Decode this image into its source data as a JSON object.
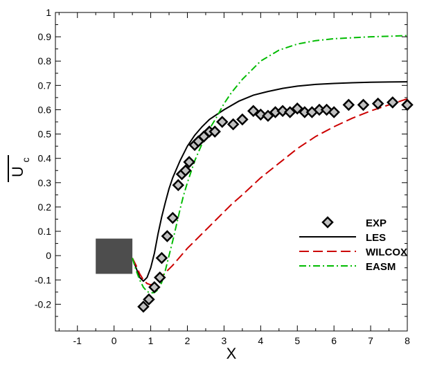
{
  "chart_data": {
    "type": "line",
    "title": "",
    "xlabel": "X",
    "ylabel_main": "U",
    "ylabel_sub": "c",
    "xlim": [
      -1.6,
      8
    ],
    "ylim": [
      -0.31,
      1
    ],
    "xticks": [
      -1,
      0,
      1,
      2,
      3,
      4,
      5,
      6,
      7,
      8
    ],
    "yticks": [
      -0.2,
      -0.1,
      0,
      0.1,
      0.2,
      0.3,
      0.4,
      0.5,
      0.6,
      0.7,
      0.8,
      0.9,
      1
    ],
    "xtick_labels": [
      "-1",
      "0",
      "1",
      "2",
      "3",
      "4",
      "5",
      "6",
      "7",
      "8"
    ],
    "ytick_labels": [
      "-0.2",
      "-0.1",
      "0",
      "0.1",
      "0.2",
      "0.3",
      "0.4",
      "0.5",
      "0.6",
      "0.7",
      "0.8",
      "0.9",
      "1"
    ],
    "grid": false,
    "legend_position": "right",
    "obstacle": {
      "x0": -0.5,
      "x1": 0.5,
      "y0": -0.075,
      "y1": 0.07,
      "color": "#4d4d4d"
    },
    "series": [
      {
        "name": "EXP",
        "kind": "markers",
        "marker": "diamond",
        "color": "#000000",
        "fill": "#c0c0c0",
        "x": [
          0.8,
          0.95,
          1.1,
          1.25,
          1.3,
          1.45,
          1.6,
          1.75,
          1.85,
          1.95,
          2.05,
          2.2,
          2.3,
          2.45,
          2.6,
          2.75,
          2.95,
          3.25,
          3.5,
          3.8,
          4.0,
          4.2,
          4.4,
          4.6,
          4.8,
          5.0,
          5.2,
          5.4,
          5.6,
          5.8,
          6.0,
          6.4,
          6.8,
          7.2,
          7.6,
          8.0
        ],
        "y": [
          -0.21,
          -0.18,
          -0.13,
          -0.09,
          -0.01,
          0.08,
          0.155,
          0.29,
          0.335,
          0.35,
          0.385,
          0.455,
          0.47,
          0.49,
          0.51,
          0.51,
          0.55,
          0.54,
          0.56,
          0.595,
          0.58,
          0.575,
          0.59,
          0.595,
          0.59,
          0.605,
          0.59,
          0.59,
          0.6,
          0.6,
          0.59,
          0.62,
          0.62,
          0.625,
          0.63,
          0.62
        ]
      },
      {
        "name": "LES",
        "kind": "line",
        "dash": "solid",
        "color": "#000000",
        "x": [
          0.5,
          0.6,
          0.7,
          0.8,
          0.9,
          1.0,
          1.1,
          1.2,
          1.3,
          1.4,
          1.5,
          1.6,
          1.8,
          2.0,
          2.2,
          2.4,
          2.6,
          2.8,
          3.0,
          3.4,
          3.8,
          4.2,
          4.6,
          5.0,
          5.5,
          6.0,
          6.5,
          7.0,
          7.5,
          8.0
        ],
        "y": [
          -0.01,
          -0.05,
          -0.09,
          -0.105,
          -0.09,
          -0.05,
          0.01,
          0.09,
          0.16,
          0.22,
          0.275,
          0.32,
          0.39,
          0.45,
          0.495,
          0.53,
          0.56,
          0.58,
          0.6,
          0.635,
          0.66,
          0.675,
          0.688,
          0.697,
          0.704,
          0.708,
          0.711,
          0.713,
          0.714,
          0.715
        ]
      },
      {
        "name": "WILCOX",
        "kind": "line",
        "dash": "long-dash",
        "color": "#cc0000",
        "x": [
          0.5,
          0.6,
          0.7,
          0.8,
          0.9,
          1.0,
          1.1,
          1.2,
          1.3,
          1.4,
          1.6,
          1.8,
          2.0,
          2.2,
          2.4,
          2.6,
          2.8,
          3.0,
          3.2,
          3.5,
          4.0,
          4.5,
          5.0,
          5.5,
          6.0,
          6.5,
          7.0,
          7.5,
          8.0
        ],
        "y": [
          -0.01,
          -0.04,
          -0.075,
          -0.1,
          -0.115,
          -0.12,
          -0.115,
          -0.1,
          -0.085,
          -0.07,
          -0.04,
          -0.005,
          0.03,
          0.06,
          0.09,
          0.12,
          0.15,
          0.18,
          0.21,
          0.25,
          0.32,
          0.38,
          0.44,
          0.49,
          0.53,
          0.565,
          0.595,
          0.62,
          0.645
        ]
      },
      {
        "name": "EASM",
        "kind": "line",
        "dash": "dash-dot",
        "color": "#00bb00",
        "x": [
          0.5,
          0.6,
          0.7,
          0.8,
          0.9,
          1.0,
          1.1,
          1.2,
          1.3,
          1.4,
          1.5,
          1.6,
          1.7,
          1.8,
          1.9,
          2.0,
          2.2,
          2.4,
          2.6,
          2.8,
          3.0,
          3.2,
          3.5,
          4.0,
          4.5,
          5.0,
          5.5,
          6.0,
          6.5,
          7.0,
          7.5,
          8.0
        ],
        "y": [
          -0.01,
          -0.06,
          -0.1,
          -0.13,
          -0.148,
          -0.153,
          -0.152,
          -0.14,
          -0.11,
          -0.06,
          0.0,
          0.06,
          0.125,
          0.19,
          0.25,
          0.3,
          0.39,
          0.46,
          0.52,
          0.57,
          0.625,
          0.67,
          0.725,
          0.8,
          0.845,
          0.87,
          0.884,
          0.892,
          0.896,
          0.9,
          0.902,
          0.905
        ]
      }
    ]
  }
}
